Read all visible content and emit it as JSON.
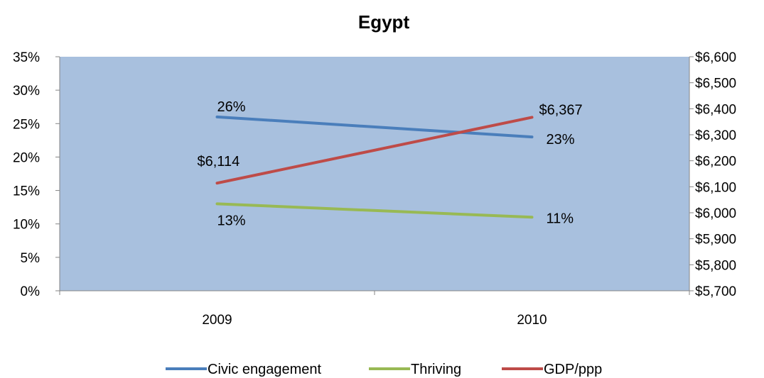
{
  "chart_data": {
    "type": "line",
    "title": "Egypt",
    "categories": [
      "2009",
      "2010"
    ],
    "y_left": {
      "min": 0,
      "max": 0.35,
      "step": 0.05,
      "ticks": [
        "0%",
        "5%",
        "10%",
        "15%",
        "20%",
        "25%",
        "30%",
        "35%"
      ]
    },
    "y_right": {
      "min": 5700,
      "max": 6600,
      "step": 100,
      "ticks": [
        "$5,700",
        "$5,800",
        "$5,900",
        "$6,000",
        "$6,100",
        "$6,200",
        "$6,300",
        "$6,400",
        "$6,500",
        "$6,600"
      ]
    },
    "series": [
      {
        "name": "Civic engagement",
        "axis": "left",
        "color": "#4a7ebb",
        "values": [
          0.26,
          0.23
        ],
        "labels": [
          "26%",
          "23%"
        ]
      },
      {
        "name": "Thriving",
        "axis": "left",
        "color": "#98b954",
        "values": [
          0.13,
          0.11
        ],
        "labels": [
          "13%",
          "11%"
        ]
      },
      {
        "name": "GDP/ppp",
        "axis": "right",
        "color": "#be4b48",
        "values": [
          6114,
          6367
        ],
        "labels": [
          "$6,114",
          "$6,367"
        ]
      }
    ],
    "plot_background": "#a8c0de",
    "legend_position": "bottom",
    "grid": false
  }
}
